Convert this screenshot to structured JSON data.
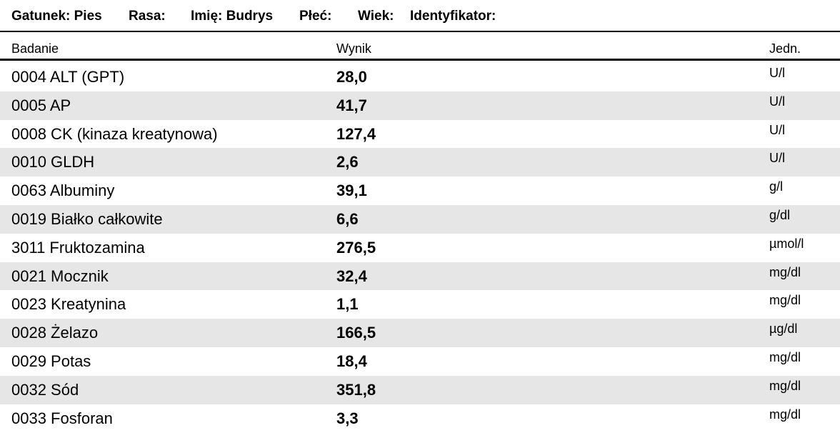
{
  "header": {
    "gatunek": "Gatunek: Pies",
    "rasa": "Rasa:",
    "imie": "Imię: Budrys",
    "plec": "Płeć:",
    "wiek": "Wiek:",
    "identyfikator": "Identyfikator:"
  },
  "columns": {
    "badanie": "Badanie",
    "wynik": "Wynik",
    "jedn": "Jedn."
  },
  "rows": [
    {
      "name": "0004 ALT (GPT)",
      "result": "28,0",
      "unit": "U/l"
    },
    {
      "name": "0005 AP",
      "result": "41,7",
      "unit": "U/l"
    },
    {
      "name": "0008 CK (kinaza kreatynowa)",
      "result": "127,4",
      "unit": "U/l"
    },
    {
      "name": "0010 GLDH",
      "result": "2,6",
      "unit": "U/l"
    },
    {
      "name": "0063 Albuminy",
      "result": "39,1",
      "unit": "g/l"
    },
    {
      "name": "0019 Białko całkowite",
      "result": "6,6",
      "unit": "g/dl"
    },
    {
      "name": "3011 Fruktozamina",
      "result": "276,5",
      "unit": "µmol/l"
    },
    {
      "name": "0021 Mocznik",
      "result": "32,4",
      "unit": "mg/dl"
    },
    {
      "name": "0023 Kreatynina",
      "result": "1,1",
      "unit": "mg/dl"
    },
    {
      "name": "0028 Żelazo",
      "result": "166,5",
      "unit": "µg/dl"
    },
    {
      "name": "0029 Potas",
      "result": "18,4",
      "unit": "mg/dl"
    },
    {
      "name": "0032 Sód",
      "result": "351,8",
      "unit": "mg/dl"
    },
    {
      "name": "0033 Fosforan",
      "result": "3,3",
      "unit": "mg/dl"
    }
  ]
}
